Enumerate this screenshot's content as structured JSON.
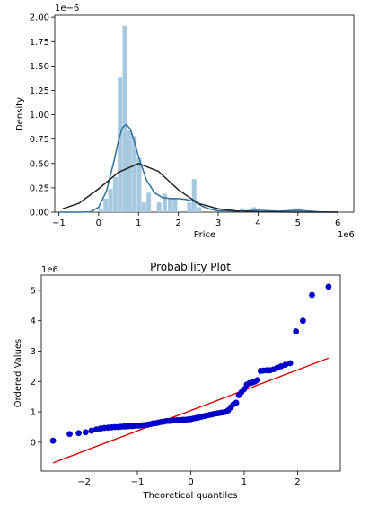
{
  "chart_data": [
    {
      "type": "histogram",
      "xlabel": "Price",
      "ylabel": "Density",
      "x_offset_label": "1e6",
      "y_offset_label": "1e−6",
      "xlim": [
        -1.1,
        6.4
      ],
      "ylim": [
        0,
        2.02
      ],
      "x_ticks": [
        -1,
        0,
        1,
        2,
        3,
        4,
        5,
        6
      ],
      "x_tick_labels": [
        "−1",
        "0",
        "1",
        "2",
        "3",
        "4",
        "5",
        "6"
      ],
      "y_ticks": [
        0,
        0.25,
        0.5,
        0.75,
        1.0,
        1.25,
        1.5,
        1.75,
        2.0
      ],
      "y_tick_labels": [
        "0.00",
        "0.25",
        "0.50",
        "0.75",
        "1.00",
        "1.25",
        "1.50",
        "1.75",
        "2.00"
      ],
      "bar_color": "#a6c9e0",
      "bin_width": 0.12,
      "bins": [
        {
          "x": 0.05,
          "density": 0.04
        },
        {
          "x": 0.18,
          "density": 0.14
        },
        {
          "x": 0.3,
          "density": 0.24
        },
        {
          "x": 0.42,
          "density": 0.36
        },
        {
          "x": 0.54,
          "density": 1.38
        },
        {
          "x": 0.66,
          "density": 1.91
        },
        {
          "x": 0.78,
          "density": 0.84
        },
        {
          "x": 0.9,
          "density": 0.78
        },
        {
          "x": 1.02,
          "density": 0.56
        },
        {
          "x": 1.14,
          "density": 0.1
        },
        {
          "x": 1.26,
          "density": 0.2
        },
        {
          "x": 1.52,
          "density": 0.1
        },
        {
          "x": 1.66,
          "density": 0.19
        },
        {
          "x": 1.8,
          "density": 0.14
        },
        {
          "x": 1.92,
          "density": 0.14
        },
        {
          "x": 2.28,
          "density": 0.1
        },
        {
          "x": 2.4,
          "density": 0.34
        },
        {
          "x": 2.52,
          "density": 0.05
        },
        {
          "x": 3.6,
          "density": 0.04
        },
        {
          "x": 3.9,
          "density": 0.05
        },
        {
          "x": 4.02,
          "density": 0.02
        },
        {
          "x": 4.92,
          "density": 0.04
        },
        {
          "x": 5.04,
          "density": 0.04
        },
        {
          "x": 5.16,
          "density": 0.02
        }
      ],
      "series": [
        {
          "kind": "kde",
          "color": "#2b6f9e",
          "x": [
            -1.0,
            -0.5,
            -0.2,
            0.0,
            0.2,
            0.4,
            0.5,
            0.6,
            0.7,
            0.8,
            0.9,
            1.0,
            1.2,
            1.4,
            1.6,
            1.8,
            2.0,
            2.2,
            2.4,
            2.6,
            2.8,
            3.0,
            3.5,
            4.0,
            4.5,
            5.0,
            5.5,
            6.0
          ],
          "y": [
            0.0,
            0.0,
            0.003,
            0.05,
            0.22,
            0.55,
            0.74,
            0.87,
            0.9,
            0.85,
            0.72,
            0.57,
            0.33,
            0.2,
            0.15,
            0.14,
            0.14,
            0.13,
            0.11,
            0.06,
            0.03,
            0.015,
            0.01,
            0.02,
            0.01,
            0.02,
            0.005,
            0.0
          ]
        },
        {
          "kind": "normal-fit",
          "color": "#222222",
          "x": [
            -0.9,
            -0.5,
            0.0,
            0.5,
            1.0,
            1.5,
            2.0,
            2.5,
            3.0,
            3.5,
            4.0,
            5.0,
            6.0
          ],
          "y": [
            0.035,
            0.09,
            0.24,
            0.41,
            0.5,
            0.42,
            0.23,
            0.09,
            0.035,
            0.01,
            0.003,
            0.0,
            0.0
          ]
        }
      ]
    },
    {
      "type": "scatter",
      "title": "Probability Plot",
      "xlabel": "Theoretical quantiles",
      "ylabel": "Ordered Values",
      "y_offset_label": "1e6",
      "xlim": [
        -2.8,
        2.8
      ],
      "ylim": [
        -0.95,
        5.5
      ],
      "x_ticks": [
        -2,
        -1,
        0,
        1,
        2
      ],
      "x_tick_labels": [
        "−2",
        "−1",
        "0",
        "1",
        "2"
      ],
      "y_ticks": [
        0,
        1,
        2,
        3,
        4,
        5
      ],
      "y_tick_labels": [
        "0",
        "1",
        "2",
        "3",
        "4",
        "5"
      ],
      "series": [
        {
          "kind": "points",
          "color": "#0000cc",
          "x": [
            -2.58,
            -2.27,
            -2.1,
            -1.97,
            -1.86,
            -1.77,
            -1.69,
            -1.62,
            -1.55,
            -1.48,
            -1.42,
            -1.36,
            -1.31,
            -1.25,
            -1.2,
            -1.15,
            -1.1,
            -1.05,
            -1.0,
            -0.95,
            -0.9,
            -0.85,
            -0.8,
            -0.75,
            -0.7,
            -0.65,
            -0.6,
            -0.55,
            -0.5,
            -0.45,
            -0.4,
            -0.35,
            -0.3,
            -0.25,
            -0.2,
            -0.15,
            -0.1,
            -0.05,
            0.0,
            0.05,
            0.1,
            0.15,
            0.2,
            0.25,
            0.3,
            0.35,
            0.4,
            0.45,
            0.5,
            0.55,
            0.6,
            0.65,
            0.7,
            0.75,
            0.8,
            0.85,
            0.9,
            0.95,
            1.0,
            1.05,
            1.1,
            1.15,
            1.2,
            1.25,
            1.31,
            1.36,
            1.42,
            1.48,
            1.55,
            1.62,
            1.69,
            1.77,
            1.86,
            1.97,
            2.1,
            2.27,
            2.58
          ],
          "y": [
            0.05,
            0.27,
            0.3,
            0.33,
            0.38,
            0.42,
            0.45,
            0.47,
            0.48,
            0.49,
            0.5,
            0.5,
            0.51,
            0.52,
            0.52,
            0.53,
            0.53,
            0.54,
            0.55,
            0.55,
            0.56,
            0.57,
            0.58,
            0.6,
            0.62,
            0.63,
            0.65,
            0.67,
            0.68,
            0.7,
            0.7,
            0.71,
            0.72,
            0.73,
            0.73,
            0.74,
            0.74,
            0.75,
            0.76,
            0.78,
            0.8,
            0.82,
            0.84,
            0.86,
            0.88,
            0.9,
            0.92,
            0.94,
            0.95,
            0.97,
            0.98,
            1.0,
            1.05,
            1.15,
            1.25,
            1.3,
            1.55,
            1.65,
            1.75,
            1.9,
            1.95,
            1.97,
            2.0,
            2.05,
            2.35,
            2.36,
            2.37,
            2.37,
            2.4,
            2.45,
            2.5,
            2.55,
            2.6,
            3.65,
            4.0,
            4.85,
            5.12
          ]
        },
        {
          "kind": "fit-line",
          "color": "#dd0000",
          "x": [
            -2.58,
            2.58
          ],
          "y": [
            -0.68,
            2.77
          ]
        }
      ]
    }
  ]
}
